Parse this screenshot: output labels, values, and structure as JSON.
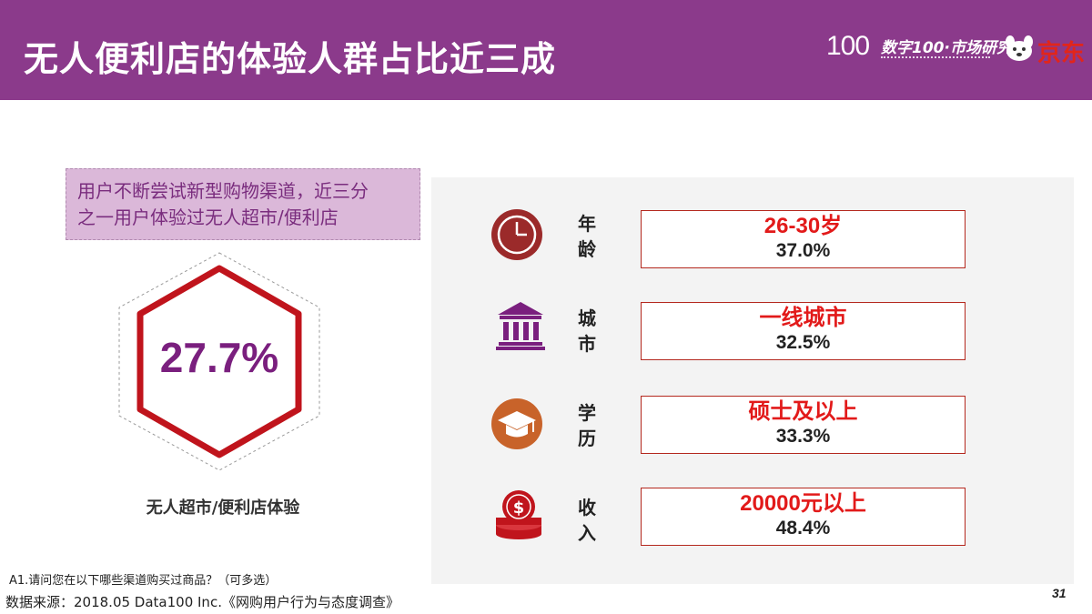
{
  "header": {
    "title": "无人便利店的体验人群占比近三成",
    "brand_100": "100",
    "brand_text": "数字100·市场研究",
    "brand_jd": "京东",
    "bg_color": "#8b3a8b"
  },
  "callout": {
    "line1": "用户不断尝试新型购物渠道，近三分",
    "line2": "之一用户体验过无人超市/便利店"
  },
  "highlight": {
    "value": "27.7%",
    "label": "无人超市/便利店体验"
  },
  "rows": [
    {
      "icon": "clock-icon",
      "cat1": "年",
      "cat2": "龄",
      "top": "26-30岁",
      "pct": "37.0%"
    },
    {
      "icon": "bank-building-icon",
      "cat1": "城",
      "cat2": "市",
      "top": "一线城市",
      "pct": "32.5%"
    },
    {
      "icon": "graduation-cap-icon",
      "cat1": "学",
      "cat2": "历",
      "top": "硕士及以上",
      "pct": "33.3%"
    },
    {
      "icon": "coin-stack-icon",
      "cat1": "收",
      "cat2": "入",
      "top": "20000元以上",
      "pct": "48.4%"
    }
  ],
  "footer": {
    "note": "A1.请问您在以下哪些渠道购买过商品？（可多选）",
    "source": "数据来源：2018.05 Data100 Inc.《网购用户行为与态度调查》",
    "page": "31"
  }
}
